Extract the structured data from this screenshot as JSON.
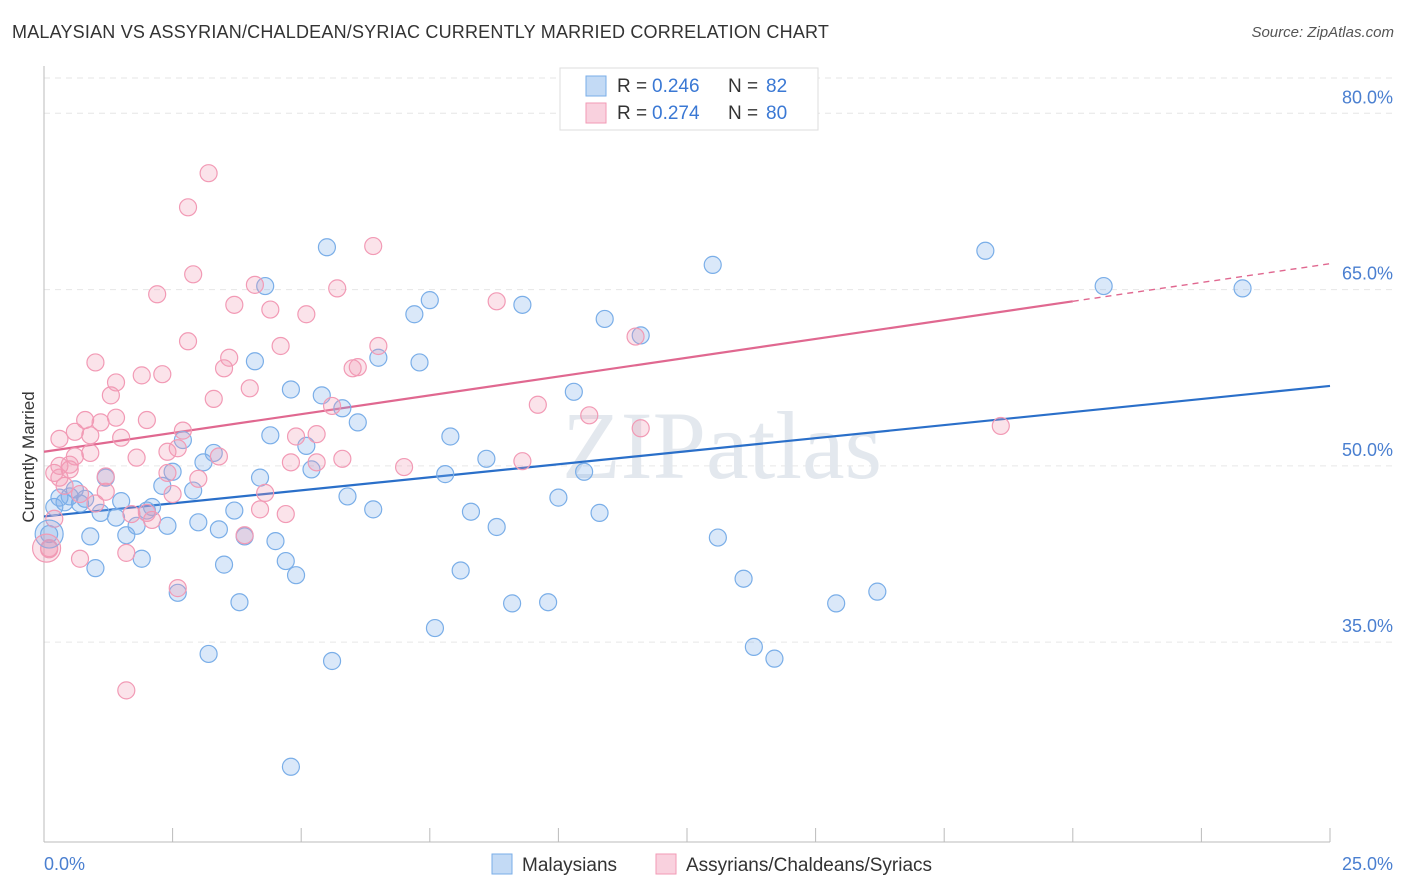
{
  "title": "MALAYSIAN VS ASSYRIAN/CHALDEAN/SYRIAC CURRENTLY MARRIED CORRELATION CHART",
  "source": "Source: ZipAtlas.com",
  "chart_data": {
    "type": "scatter",
    "ylabel": "Currently Married",
    "xlim": [
      0,
      25
    ],
    "ylim": [
      18,
      83
    ],
    "x_tick_labels": [
      "0.0%",
      "25.0%"
    ],
    "y_ticks": [
      35,
      50,
      65,
      80
    ],
    "y_tick_labels": [
      "35.0%",
      "50.0%",
      "65.0%",
      "80.0%"
    ],
    "watermark": "ZIPatlas",
    "legend": [
      {
        "r_label": "R =",
        "r": "0.246",
        "n_label": "N =",
        "n": "82",
        "color": "#7aaee8"
      },
      {
        "r_label": "R =",
        "r": "0.274",
        "n_label": "N =",
        "n": "80",
        "color": "#f29ab5"
      }
    ],
    "series": [
      {
        "name": "Malaysians",
        "color": "#7aaee8",
        "line_color": "#2a6fc9",
        "trend": {
          "x0": 0,
          "y0": 45.7,
          "x1": 25,
          "y1": 56.8,
          "solid_until": 25
        },
        "points": [
          [
            0.1,
            44.2
          ],
          [
            0.2,
            46.5
          ],
          [
            0.3,
            47.3
          ],
          [
            0.4,
            46.9
          ],
          [
            0.5,
            47.4
          ],
          [
            0.6,
            48.0
          ],
          [
            0.7,
            46.8
          ],
          [
            0.8,
            47.2
          ],
          [
            0.9,
            44.0
          ],
          [
            1.0,
            41.3
          ],
          [
            1.1,
            46.0
          ],
          [
            1.2,
            49.0
          ],
          [
            1.4,
            45.6
          ],
          [
            1.5,
            47.0
          ],
          [
            1.6,
            44.1
          ],
          [
            1.8,
            44.9
          ],
          [
            1.9,
            42.1
          ],
          [
            2.0,
            46.2
          ],
          [
            2.1,
            46.5
          ],
          [
            2.3,
            48.3
          ],
          [
            2.4,
            44.9
          ],
          [
            2.5,
            49.5
          ],
          [
            2.6,
            39.2
          ],
          [
            2.7,
            52.2
          ],
          [
            2.9,
            47.9
          ],
          [
            3.0,
            45.2
          ],
          [
            3.1,
            50.3
          ],
          [
            3.2,
            34.0
          ],
          [
            3.3,
            51.1
          ],
          [
            3.4,
            44.6
          ],
          [
            3.5,
            41.6
          ],
          [
            3.7,
            46.2
          ],
          [
            3.8,
            38.4
          ],
          [
            3.9,
            44.0
          ],
          [
            4.1,
            58.9
          ],
          [
            4.2,
            49.0
          ],
          [
            4.3,
            65.3
          ],
          [
            4.4,
            52.6
          ],
          [
            4.5,
            43.6
          ],
          [
            4.7,
            41.9
          ],
          [
            4.9,
            40.7
          ],
          [
            4.8,
            56.5
          ],
          [
            5.1,
            51.7
          ],
          [
            5.2,
            49.7
          ],
          [
            5.4,
            56.0
          ],
          [
            5.5,
            68.6
          ],
          [
            5.6,
            33.4
          ],
          [
            5.8,
            54.9
          ],
          [
            5.9,
            47.4
          ],
          [
            6.1,
            53.7
          ],
          [
            6.4,
            46.3
          ],
          [
            6.5,
            59.2
          ],
          [
            7.2,
            62.9
          ],
          [
            7.3,
            58.8
          ],
          [
            7.5,
            64.1
          ],
          [
            7.6,
            36.2
          ],
          [
            7.8,
            49.3
          ],
          [
            7.9,
            52.5
          ],
          [
            8.1,
            41.1
          ],
          [
            8.3,
            46.1
          ],
          [
            8.6,
            50.6
          ],
          [
            8.8,
            44.8
          ],
          [
            9.1,
            38.3
          ],
          [
            9.3,
            63.7
          ],
          [
            9.8,
            38.4
          ],
          [
            10.0,
            47.3
          ],
          [
            10.3,
            56.3
          ],
          [
            10.5,
            49.5
          ],
          [
            10.8,
            46.0
          ],
          [
            10.9,
            62.5
          ],
          [
            11.6,
            61.1
          ],
          [
            13.0,
            67.1
          ],
          [
            13.1,
            43.9
          ],
          [
            13.6,
            40.4
          ],
          [
            13.8,
            34.6
          ],
          [
            14.2,
            33.6
          ],
          [
            15.4,
            38.3
          ],
          [
            16.2,
            39.3
          ],
          [
            18.3,
            68.3
          ],
          [
            20.6,
            65.3
          ],
          [
            23.3,
            65.1
          ],
          [
            4.8,
            24.4
          ]
        ]
      },
      {
        "name": "Assyrians/Chaldeans/Syriacs",
        "color": "#f29ab5",
        "line_color": "#e06890",
        "trend": {
          "x0": 0,
          "y0": 51.2,
          "x1": 25,
          "y1": 67.2,
          "solid_until": 20
        },
        "points": [
          [
            0.1,
            43.0
          ],
          [
            0.2,
            45.5
          ],
          [
            0.2,
            49.4
          ],
          [
            0.3,
            52.3
          ],
          [
            0.3,
            50.0
          ],
          [
            0.4,
            48.3
          ],
          [
            0.5,
            49.7
          ],
          [
            0.5,
            50.1
          ],
          [
            0.6,
            50.8
          ],
          [
            0.6,
            52.9
          ],
          [
            0.7,
            47.6
          ],
          [
            0.7,
            42.1
          ],
          [
            0.8,
            53.9
          ],
          [
            0.9,
            52.6
          ],
          [
            0.9,
            51.1
          ],
          [
            1.0,
            58.8
          ],
          [
            1.1,
            53.7
          ],
          [
            1.2,
            49.1
          ],
          [
            1.2,
            47.8
          ],
          [
            1.3,
            56.0
          ],
          [
            1.4,
            54.1
          ],
          [
            1.4,
            57.1
          ],
          [
            1.5,
            52.4
          ],
          [
            1.6,
            30.9
          ],
          [
            1.6,
            42.6
          ],
          [
            1.7,
            45.9
          ],
          [
            1.8,
            50.7
          ],
          [
            1.9,
            57.7
          ],
          [
            2.0,
            53.9
          ],
          [
            2.1,
            45.4
          ],
          [
            2.2,
            64.6
          ],
          [
            2.3,
            57.8
          ],
          [
            2.4,
            51.2
          ],
          [
            2.4,
            49.4
          ],
          [
            2.5,
            47.6
          ],
          [
            2.6,
            39.6
          ],
          [
            2.6,
            51.5
          ],
          [
            2.7,
            53.0
          ],
          [
            2.8,
            72.0
          ],
          [
            2.8,
            60.6
          ],
          [
            2.9,
            66.3
          ],
          [
            3.0,
            48.9
          ],
          [
            3.2,
            74.9
          ],
          [
            3.3,
            55.7
          ],
          [
            3.4,
            50.8
          ],
          [
            3.5,
            58.3
          ],
          [
            3.6,
            59.2
          ],
          [
            3.7,
            63.7
          ],
          [
            3.9,
            44.1
          ],
          [
            4.0,
            56.6
          ],
          [
            4.1,
            65.4
          ],
          [
            4.2,
            46.3
          ],
          [
            4.3,
            47.7
          ],
          [
            4.4,
            63.3
          ],
          [
            4.6,
            60.2
          ],
          [
            4.7,
            45.9
          ],
          [
            4.8,
            50.3
          ],
          [
            4.9,
            52.5
          ],
          [
            5.1,
            62.9
          ],
          [
            5.3,
            52.7
          ],
          [
            5.3,
            50.3
          ],
          [
            5.6,
            55.1
          ],
          [
            5.7,
            65.1
          ],
          [
            5.8,
            50.6
          ],
          [
            6.0,
            58.3
          ],
          [
            6.1,
            58.4
          ],
          [
            6.4,
            68.7
          ],
          [
            6.5,
            60.2
          ],
          [
            7.0,
            49.9
          ],
          [
            8.8,
            64.0
          ],
          [
            9.3,
            50.4
          ],
          [
            9.6,
            55.2
          ],
          [
            10.6,
            54.3
          ],
          [
            11.5,
            61.0
          ],
          [
            11.6,
            53.2
          ],
          [
            18.6,
            53.4
          ],
          [
            0.1,
            42.9
          ],
          [
            0.3,
            49.0
          ],
          [
            1.0,
            46.8
          ],
          [
            2.0,
            46.0
          ]
        ]
      }
    ]
  }
}
